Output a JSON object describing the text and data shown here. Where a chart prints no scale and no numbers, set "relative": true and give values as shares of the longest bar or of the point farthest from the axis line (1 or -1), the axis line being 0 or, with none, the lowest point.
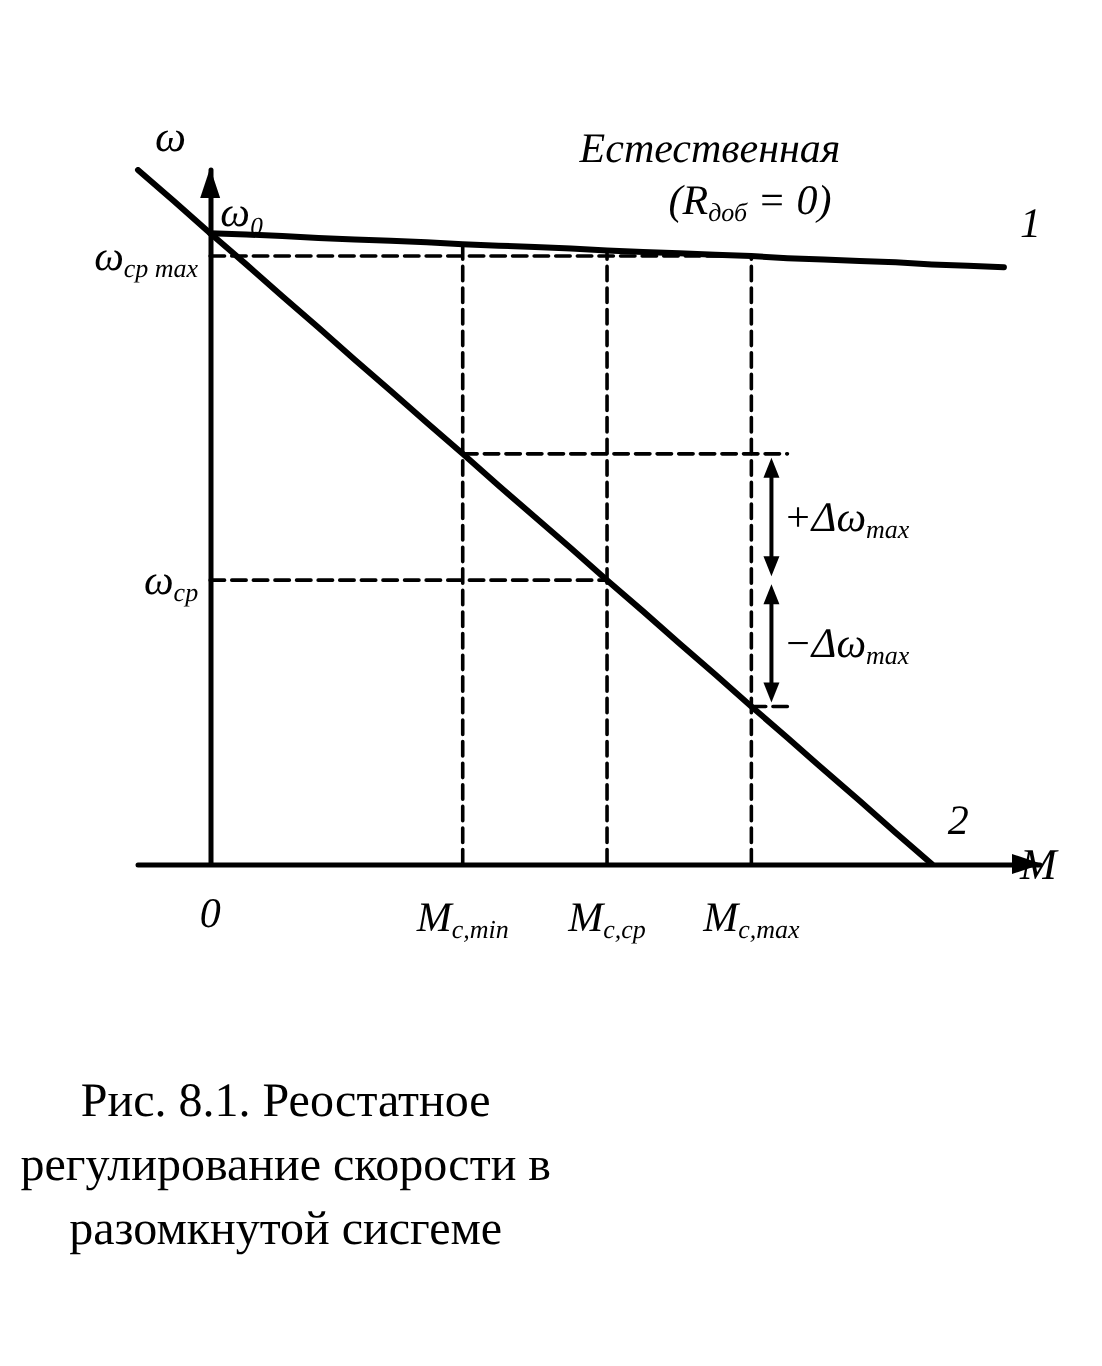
{
  "chart_data": {
    "type": "line",
    "relative": true,
    "title": "Рис. 8.1. Реостатное регулирование скорости в разомкнутой сисгеме",
    "xlabel": "M",
    "ylabel": "ω",
    "categories": [
      null,
      null,
      "0",
      null,
      null,
      null,
      null,
      null,
      null,
      "M$_{с,min}$",
      null,
      null,
      null,
      "M$_{с,ср}$",
      null,
      null,
      null,
      "M$_{с,max}$",
      null,
      null,
      null,
      null,
      null,
      null,
      null,
      null
    ],
    "grid": false,
    "legend": false,
    "marker": "none",
    "series": [
      {
        "name": "1",
        "color": "#000000",
        "line_style": "solid",
        "values": [
          null,
          null,
          0.909,
          0.907,
          0.905,
          0.902,
          0.9,
          0.898,
          0.896,
          0.893,
          0.891,
          0.889,
          0.887,
          0.884,
          0.882,
          0.88,
          0.878,
          0.876,
          0.873,
          0.871,
          0.869,
          0.867,
          0.864,
          0.862,
          0.86,
          null
        ]
      },
      {
        "name": "2",
        "color": "#000000",
        "line_style": "solid",
        "values": [
          1,
          0.955,
          0.909,
          0.864,
          0.818,
          0.773,
          0.727,
          0.682,
          0.636,
          0.591,
          0.545,
          0.5,
          0.455,
          0.409,
          0.364,
          0.318,
          0.273,
          0.227,
          0.182,
          0.136,
          0.091,
          0.045,
          0,
          null,
          null,
          null
        ]
      },
      {
        "color": "#000000",
        "line_style": "dashed",
        "x": [
          "M$_{с,min}$",
          "M$_{с,min}$"
        ],
        "values": [
          0,
          0.893
        ]
      },
      {
        "color": "#000000",
        "line_style": "dashed",
        "x": [
          "M$_{с,ср}$",
          "M$_{с,ср}$"
        ],
        "values": [
          0,
          0.884
        ]
      },
      {
        "color": "#000000",
        "line_style": "dashed",
        "x": [
          "M$_{с,max}$",
          "M$_{с,max}$"
        ],
        "values": [
          0,
          0.876
        ]
      },
      {
        "color": "#000000",
        "line_style": "dashed",
        "x": [
          "0",
          "M$_{с,max}$"
        ],
        "values": [
          0.876,
          0.876
        ]
      },
      {
        "color": "#000000",
        "line_style": "dashed",
        "x": [
          "0",
          "M$_{с,ср}$"
        ],
        "values": [
          0.409,
          0.409
        ]
      },
      {
        "color": "#000000",
        "line_style": "dashed",
        "values": [
          null,
          null,
          null,
          null,
          null,
          null,
          null,
          null,
          null,
          0.591,
          0.591,
          0.591,
          0.591,
          0.591,
          0.591,
          0.591,
          0.591,
          0.591,
          0.591,
          null,
          null,
          null,
          null,
          null,
          null,
          null
        ]
      },
      {
        "color": "#000000",
        "line_style": "dashed",
        "values": [
          null,
          null,
          null,
          null,
          null,
          null,
          null,
          null,
          null,
          null,
          null,
          null,
          null,
          null,
          null,
          null,
          null,
          0.227,
          0.227,
          null,
          null,
          null,
          null,
          null,
          null,
          null
        ]
      }
    ],
    "annotations": [
      {
        "text": "ω₀",
        "x": "0",
        "y": 0.909
      },
      {
        "text": "ω$_{ср max}$",
        "x": "0",
        "y": 0.876
      },
      {
        "text": "ω$_{ср}$",
        "x": "0",
        "y": 0.409
      },
      "Естественная",
      "(R$_{доб}$ = 0)",
      "+Δω$_{max}$",
      "−Δω$_{max}$"
    ]
  }
}
